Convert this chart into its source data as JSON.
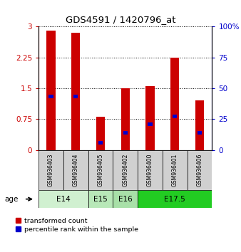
{
  "title": "GDS4591 / 1420796_at",
  "samples": [
    "GSM936403",
    "GSM936404",
    "GSM936405",
    "GSM936402",
    "GSM936400",
    "GSM936401",
    "GSM936406"
  ],
  "red_values": [
    2.9,
    2.85,
    0.8,
    1.5,
    1.55,
    2.25,
    1.2
  ],
  "blue_positions": [
    1.3,
    1.3,
    0.18,
    0.42,
    0.63,
    0.82,
    0.42
  ],
  "ylim_left": [
    0,
    3
  ],
  "ylim_right": [
    0,
    100
  ],
  "yticks_left": [
    0,
    0.75,
    1.5,
    2.25,
    3
  ],
  "yticks_right": [
    0,
    25,
    50,
    75,
    100
  ],
  "ytick_labels_right": [
    "0",
    "25",
    "50",
    "75",
    "100%"
  ],
  "left_color": "#cc0000",
  "right_color": "#0000cc",
  "bar_width": 0.35,
  "blue_bar_width": 0.18,
  "blue_bar_height": 0.08,
  "sample_bg_color": "#d0d0d0",
  "age_groups": [
    {
      "label": "E14",
      "start": 0,
      "end": 1,
      "color": "#d0f0d0"
    },
    {
      "label": "E15",
      "start": 2,
      "end": 2,
      "color": "#b8e8b8"
    },
    {
      "label": "E16",
      "start": 3,
      "end": 3,
      "color": "#a8e0a8"
    },
    {
      "label": "E17.5",
      "start": 4,
      "end": 6,
      "color": "#22cc22"
    }
  ],
  "legend_red_label": "transformed count",
  "legend_blue_label": "percentile rank within the sample"
}
